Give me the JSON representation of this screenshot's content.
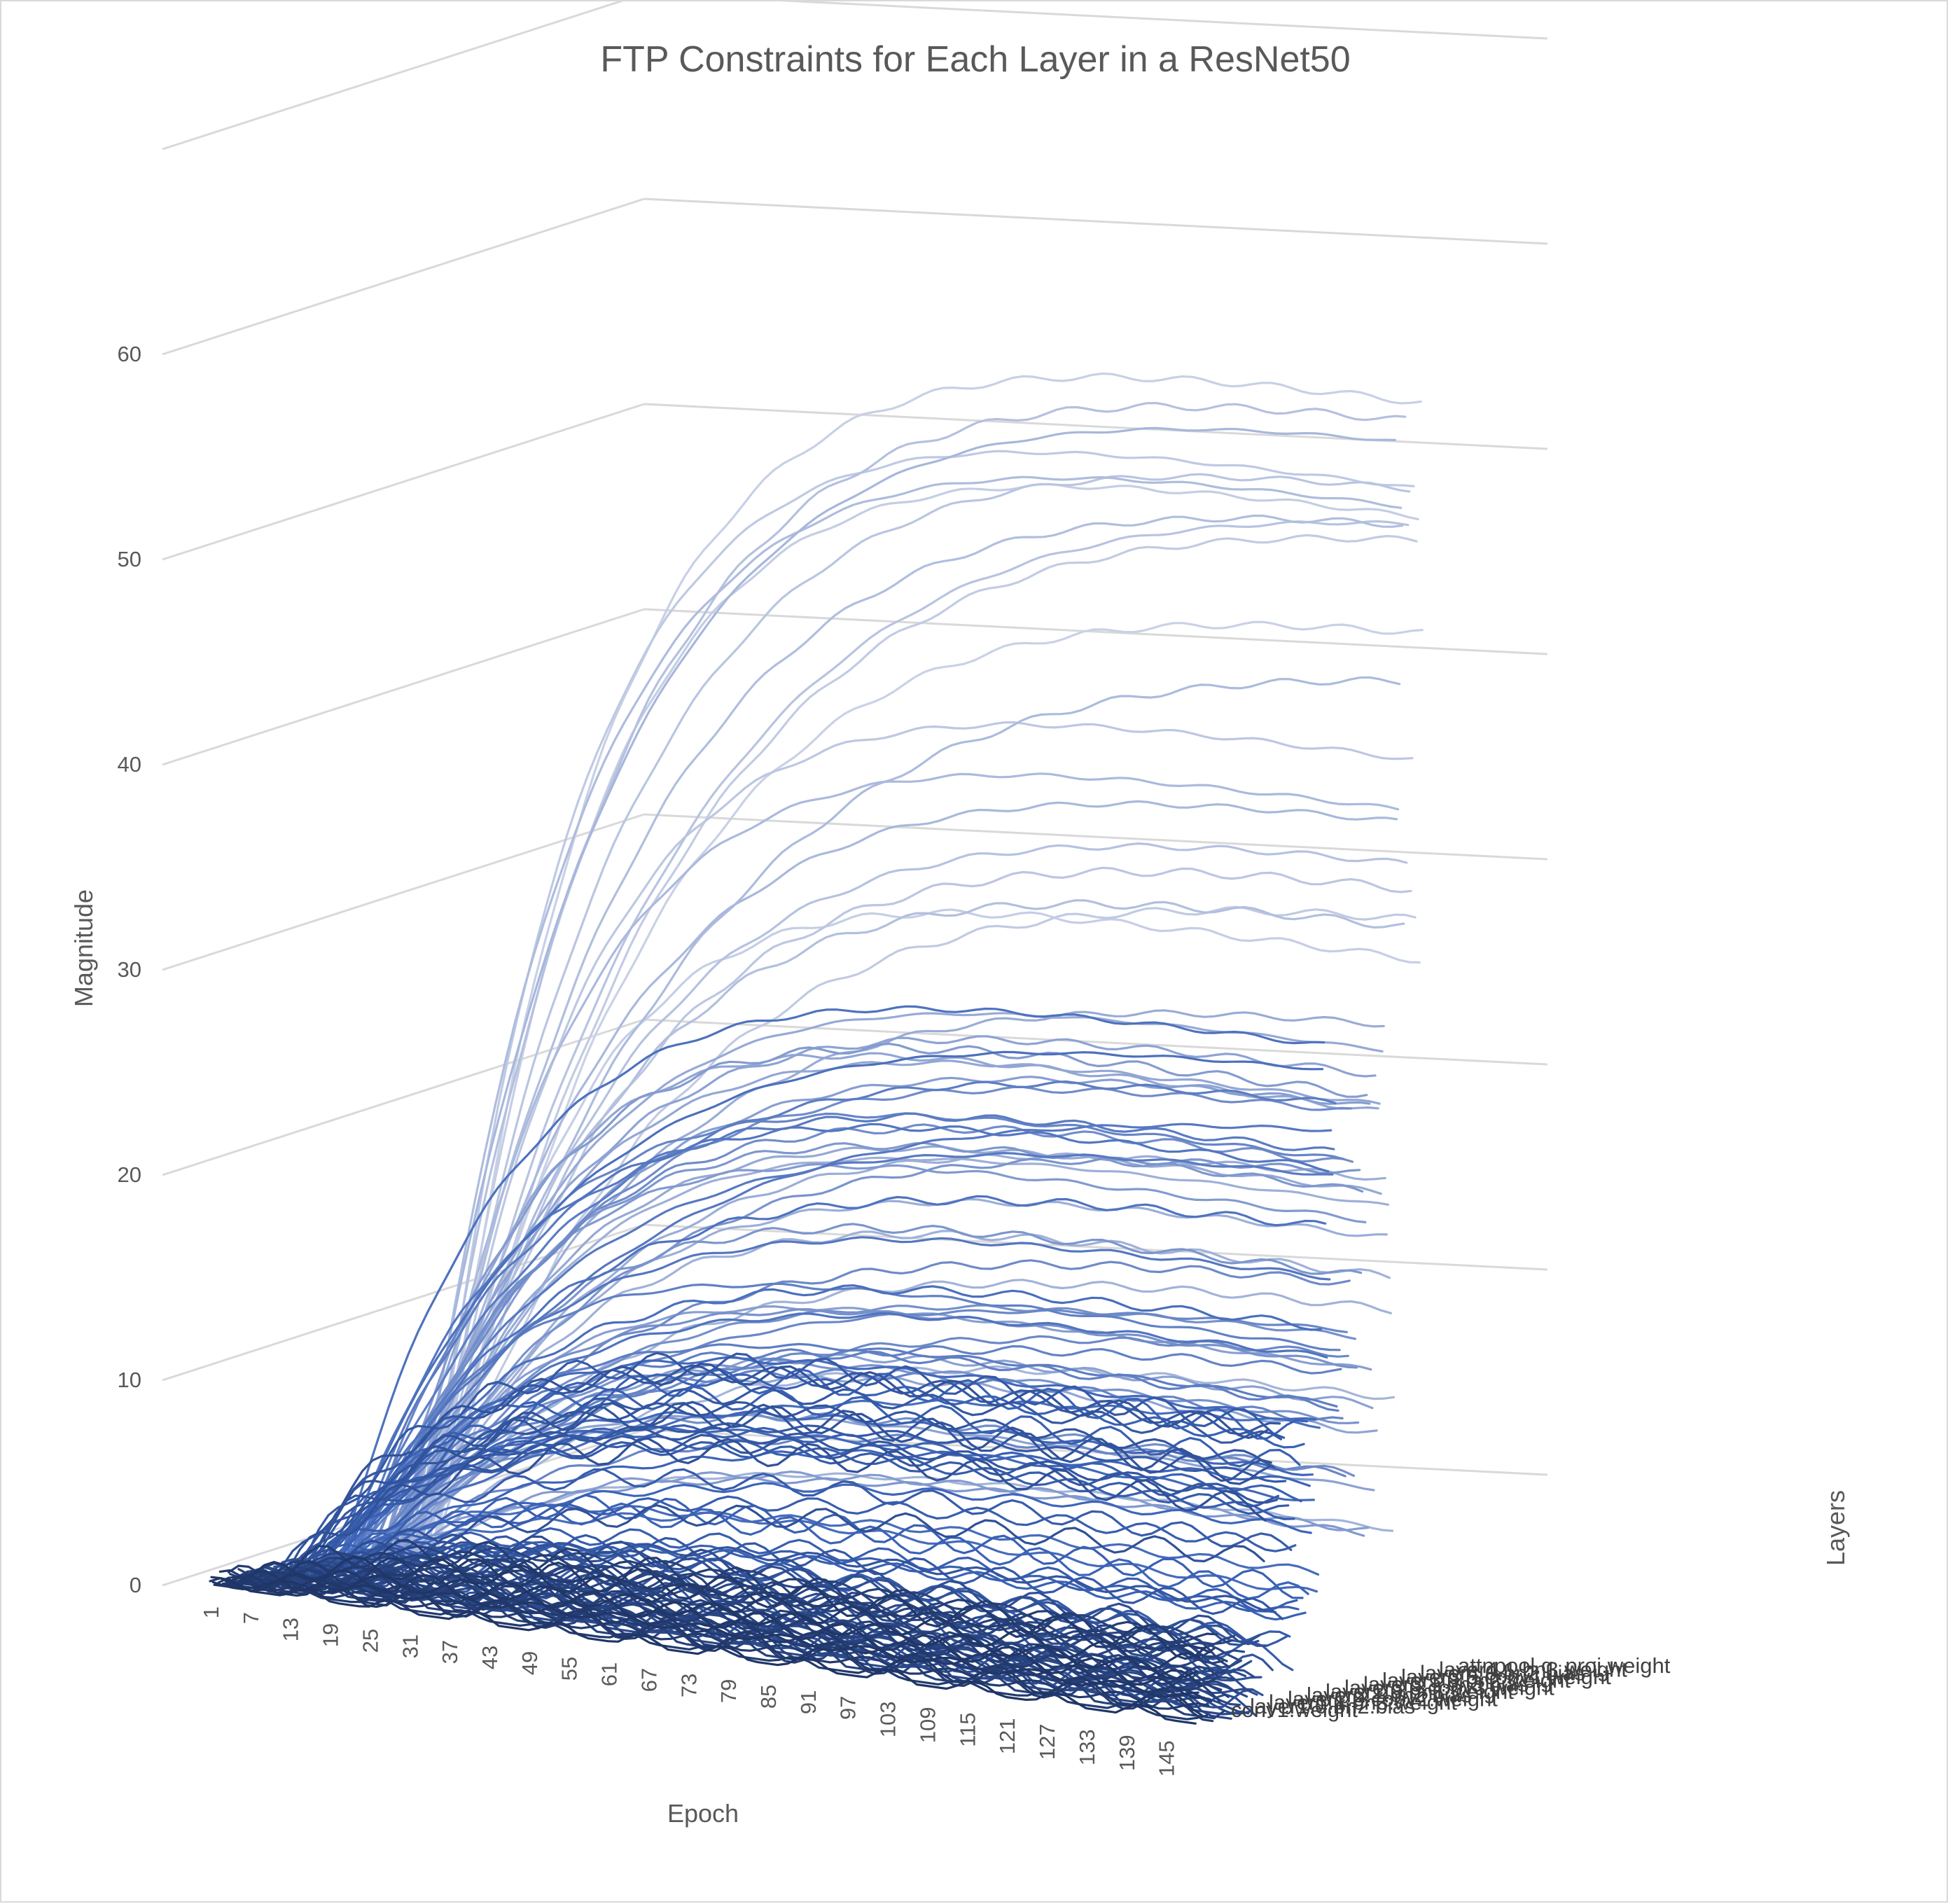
{
  "chart_data": {
    "type": "line",
    "style": "3d-line",
    "title": "FTP Constraints for Each Layer in a ResNet50",
    "xlabel": "Epoch",
    "ylabel": "Magnitude",
    "zlabel": "Layers",
    "ylim": [
      0,
      70
    ],
    "y_ticks": [
      "0",
      "10",
      "20",
      "30",
      "40",
      "50",
      "60"
    ],
    "x_ticks": [
      "1",
      "7",
      "13",
      "19",
      "25",
      "31",
      "37",
      "43",
      "49",
      "55",
      "61",
      "67",
      "73",
      "79",
      "85",
      "91",
      "97",
      "103",
      "109",
      "115",
      "121",
      "127",
      "133",
      "139",
      "145"
    ],
    "z_tick_labels": [
      "attnpool.q_proj.weight",
      "layer4.1.bn3.weight",
      "layer4.0.bn2.bias",
      "layer3.5.conv1.weight",
      "layer3.3.bn2.weight",
      "layer3.1.bn3.bias",
      "layer3.0.conv3.weight",
      "layer2.3.bn1.weight",
      "layer2.1.bn2.bias",
      "layer2.0.conv2.weight",
      "layer1.1.bn3.weight",
      "layer1.0.bn2.bias",
      "conv1.weight"
    ],
    "grid": true,
    "x_range": [
      1,
      150
    ],
    "series_count": 160,
    "series_color_front": "#1f3566",
    "series_color_mid": "#3b63b8",
    "series_color_back": "#c9d1e6",
    "series_final_magnitude_range": [
      0,
      63
    ],
    "series_shape": "rising from 0, saturating near the final epochs"
  }
}
